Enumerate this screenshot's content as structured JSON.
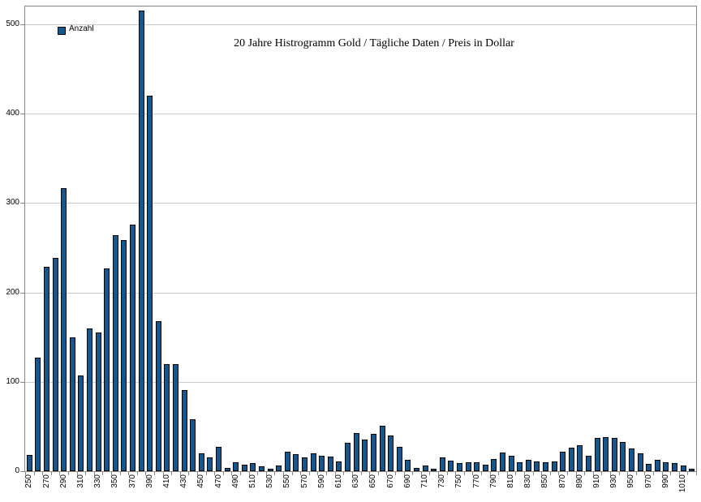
{
  "title": "20 Jahre Histrogramm Gold / Tägliche Daten / Preis in Dollar",
  "legend": {
    "label": "Anzahl"
  },
  "colors": {
    "bar_fill": "#15568d",
    "bar_border": "#000000",
    "gridline": "#c9c9c9",
    "axis": "#888888",
    "background": "#ffffff"
  },
  "chart_data": {
    "type": "bar",
    "title": "20 Jahre Histrogramm Gold / Tägliche Daten / Preis in Dollar",
    "legend_entries": [
      "Anzahl"
    ],
    "legend_position": "top-left-inside",
    "xlabel": "",
    "ylabel": "",
    "grid": "horizontal",
    "ylim": [
      0,
      522
    ],
    "y_ticks": [
      0,
      100,
      200,
      300,
      400,
      500
    ],
    "x_labels_shown": [
      250,
      270,
      290,
      310,
      330,
      350,
      370,
      390,
      410,
      430,
      450,
      470,
      490,
      510,
      530,
      550,
      570,
      590,
      610,
      630,
      650,
      670,
      690,
      710,
      730,
      750,
      770,
      790,
      810,
      830,
      850,
      870,
      890,
      910,
      930,
      950,
      970,
      990,
      1010
    ],
    "categories": [
      250,
      260,
      270,
      280,
      290,
      300,
      310,
      320,
      330,
      340,
      350,
      360,
      370,
      380,
      390,
      400,
      410,
      420,
      430,
      440,
      450,
      460,
      470,
      480,
      490,
      500,
      510,
      520,
      530,
      540,
      550,
      560,
      570,
      580,
      590,
      600,
      610,
      620,
      630,
      640,
      650,
      660,
      670,
      680,
      690,
      700,
      710,
      720,
      730,
      740,
      750,
      760,
      770,
      780,
      790,
      800,
      810,
      820,
      830,
      840,
      850,
      860,
      870,
      880,
      890,
      900,
      910,
      920,
      930,
      940,
      950,
      960,
      970,
      980,
      990,
      1000,
      1010,
      1020
    ],
    "values": [
      18,
      127,
      229,
      239,
      317,
      150,
      107,
      160,
      155,
      227,
      264,
      259,
      276,
      515,
      420,
      168,
      120,
      120,
      91,
      58,
      20,
      15,
      27,
      4,
      10,
      7,
      9,
      5,
      3,
      6,
      22,
      19,
      15,
      20,
      17,
      16,
      11,
      32,
      43,
      35,
      42,
      51,
      40,
      27,
      13,
      4,
      6,
      3,
      15,
      12,
      9,
      10,
      10,
      7,
      14,
      21,
      17,
      10,
      13,
      11,
      10,
      11,
      22,
      26,
      29,
      17,
      37,
      38,
      37,
      33,
      25,
      20,
      8,
      13,
      10,
      9,
      6,
      3
    ]
  }
}
